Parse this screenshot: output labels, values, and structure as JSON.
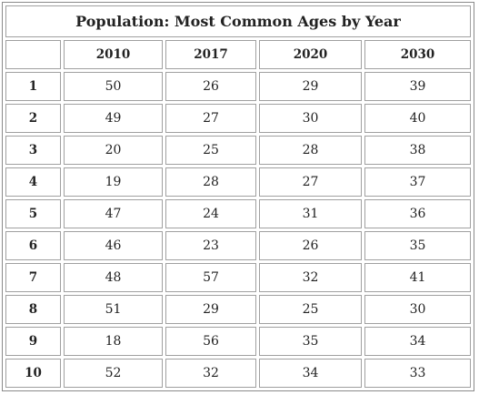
{
  "table": {
    "title": "Population: Most Common Ages by Year",
    "columns": [
      "2010",
      "2017",
      "2020",
      "2030"
    ],
    "rows": [
      {
        "label": "1",
        "cells": [
          50,
          26,
          29,
          39
        ]
      },
      {
        "label": "2",
        "cells": [
          49,
          27,
          30,
          40
        ]
      },
      {
        "label": "3",
        "cells": [
          20,
          25,
          28,
          38
        ]
      },
      {
        "label": "4",
        "cells": [
          19,
          28,
          27,
          37
        ]
      },
      {
        "label": "5",
        "cells": [
          47,
          24,
          31,
          36
        ]
      },
      {
        "label": "6",
        "cells": [
          46,
          23,
          26,
          35
        ]
      },
      {
        "label": "7",
        "cells": [
          48,
          57,
          32,
          41
        ]
      },
      {
        "label": "8",
        "cells": [
          51,
          29,
          25,
          30
        ]
      },
      {
        "label": "9",
        "cells": [
          18,
          56,
          35,
          34
        ]
      },
      {
        "label": "10",
        "cells": [
          52,
          32,
          34,
          33
        ]
      }
    ]
  }
}
